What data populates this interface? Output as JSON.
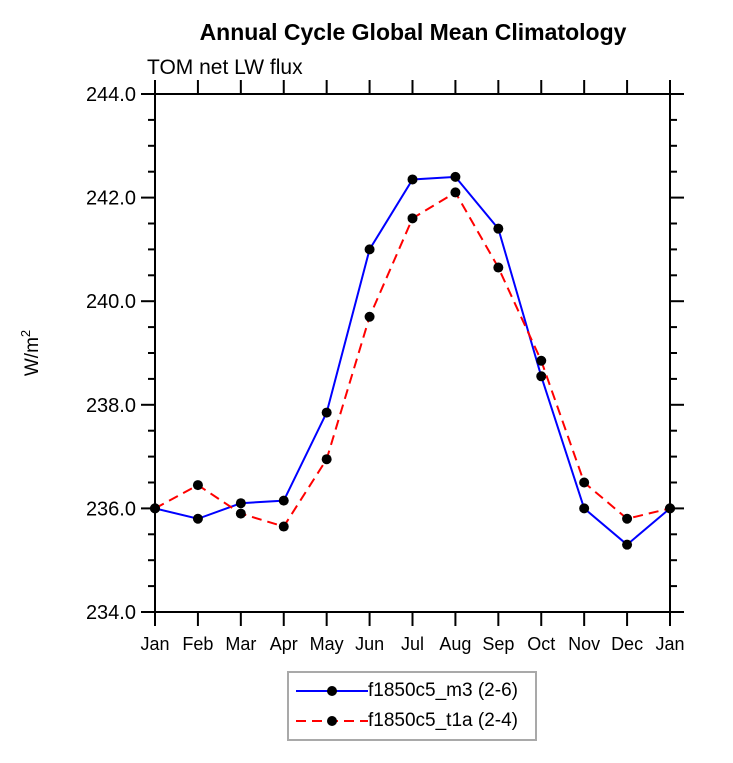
{
  "chart_data": {
    "type": "line",
    "title": "Annual Cycle Global Mean Climatology",
    "subtitle": "TOM net LW flux",
    "ylabel": "W/m²",
    "ylim": [
      234.0,
      244.0
    ],
    "ytick_major_interval": 2.0,
    "ytick_minor_interval": 0.5,
    "ytick_labels": [
      "234.0",
      "236.0",
      "238.0",
      "240.0",
      "242.0",
      "244.0"
    ],
    "x_categories": [
      "Jan",
      "Feb",
      "Mar",
      "Apr",
      "May",
      "Jun",
      "Jul",
      "Aug",
      "Sep",
      "Oct",
      "Nov",
      "Dec",
      "Jan"
    ],
    "grid": false,
    "legend_position": "bottom-center",
    "marker": "filled-circle",
    "marker_color": "#000000",
    "axis_color": "#000000",
    "series": [
      {
        "name": "f1850c5_m3 (2-6)",
        "color": "#0000ff",
        "line_style": "solid",
        "values": [
          236.0,
          235.8,
          236.1,
          236.15,
          237.85,
          241.0,
          242.35,
          242.4,
          241.4,
          238.55,
          236.0,
          235.3,
          236.0
        ]
      },
      {
        "name": "f1850c5_t1a (2-4)",
        "color": "#ff0000",
        "line_style": "dashed",
        "values": [
          236.0,
          236.45,
          235.9,
          235.65,
          236.95,
          239.7,
          241.6,
          242.1,
          240.65,
          238.85,
          236.5,
          235.8,
          236.0
        ]
      }
    ]
  }
}
